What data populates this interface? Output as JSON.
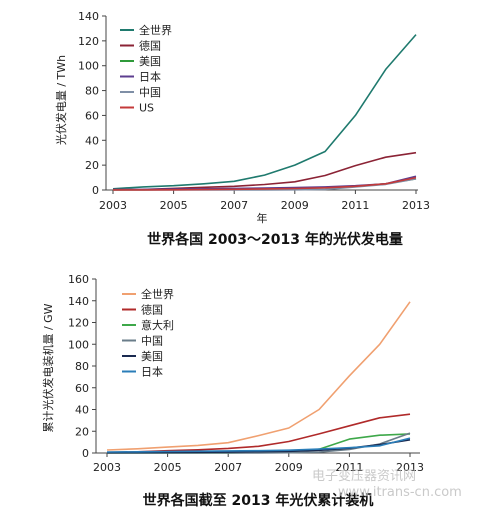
{
  "colors": {
    "world": "#1f7a6e",
    "germany": "#8b2335",
    "usa": "#2f9a3a",
    "japan": "#5c3d8f",
    "china": "#7f8fa6",
    "us": "#c43a3a",
    "world2": "#f0a070",
    "germany2": "#b02a2a",
    "italy": "#3ea84a",
    "china2": "#6a7d8a",
    "usa2": "#1a2a50",
    "japan2": "#2a7db8"
  },
  "chart_data": [
    {
      "type": "line",
      "title": "世界各国 2003～2013 年的光伏发电量",
      "xlabel": "年",
      "ylabel": "光伏发电量 / TWh",
      "xlim": [
        2003,
        2013
      ],
      "ylim": [
        0,
        140
      ],
      "xticks": [
        "2003",
        "2005",
        "2007",
        "2009",
        "2011",
        "2013"
      ],
      "yticks": [
        "0",
        "20",
        "40",
        "60",
        "80",
        "100",
        "120",
        "140"
      ],
      "legend_position": "top-left",
      "x": [
        2003,
        2004,
        2005,
        2006,
        2007,
        2008,
        2009,
        2010,
        2011,
        2012,
        2013
      ],
      "series": [
        {
          "name": "全世界",
          "color_key": "world",
          "values": [
            1,
            2.5,
            3.5,
            5,
            7,
            12,
            20,
            31,
            60,
            97,
            125
          ]
        },
        {
          "name": "德国",
          "color_key": "germany",
          "values": [
            0.3,
            0.5,
            1.3,
            2.2,
            3,
            4.4,
            6.6,
            11.7,
            19.6,
            26.4,
            30
          ]
        },
        {
          "name": "美国",
          "color_key": "usa",
          "values": [
            0.1,
            0.2,
            0.3,
            0.4,
            0.6,
            0.9,
            1.2,
            1.8,
            3,
            5,
            9
          ]
        },
        {
          "name": "日本",
          "color_key": "japan",
          "values": [
            0.3,
            0.5,
            0.8,
            1,
            1.3,
            1.6,
            1.9,
            2.5,
            3.5,
            5,
            11
          ]
        },
        {
          "name": "中国",
          "color_key": "china",
          "values": [
            0,
            0,
            0,
            0.1,
            0.1,
            0.1,
            0.2,
            0.5,
            2.5,
            4.5,
            9
          ]
        },
        {
          "name": "US",
          "color_key": "us",
          "values": [
            0.1,
            0.1,
            0.2,
            0.3,
            0.6,
            0.9,
            1.2,
            1.8,
            3,
            5,
            10
          ]
        }
      ]
    },
    {
      "type": "line",
      "title": "世界各国截至 2013 年光伏累计装机",
      "xlabel": "",
      "ylabel": "累计光伏发电装机量 / GW",
      "xlim": [
        2003,
        2013
      ],
      "ylim": [
        0,
        160
      ],
      "xticks": [
        "2003",
        "2005",
        "2007",
        "2009",
        "2011",
        "2013"
      ],
      "yticks": [
        "0",
        "20",
        "40",
        "60",
        "80",
        "100",
        "120",
        "140",
        "160"
      ],
      "legend_position": "top-left",
      "x": [
        2003,
        2004,
        2005,
        2006,
        2007,
        2008,
        2009,
        2010,
        2011,
        2012,
        2013
      ],
      "series": [
        {
          "name": "全世界",
          "color_key": "world2",
          "values": [
            2.8,
            3.9,
            5.4,
            7,
            9.5,
            16,
            23,
            40,
            71,
            100,
            139
          ]
        },
        {
          "name": "德国",
          "color_key": "germany2",
          "values": [
            0.4,
            1.1,
            2.1,
            2.9,
            4.2,
            6.2,
            10.6,
            17.6,
            25,
            32.4,
            35.7
          ]
        },
        {
          "name": "意大利",
          "color_key": "italy",
          "values": [
            0,
            0,
            0,
            0.1,
            0.1,
            0.5,
            1.2,
            3.5,
            12.8,
            16.4,
            17.6
          ]
        },
        {
          "name": "中国",
          "color_key": "china2",
          "values": [
            0.1,
            0.1,
            0.1,
            0.1,
            0.1,
            0.1,
            0.3,
            0.8,
            3.3,
            8.3,
            18.3
          ]
        },
        {
          "name": "美国",
          "color_key": "usa2",
          "values": [
            0.3,
            0.4,
            0.5,
            0.6,
            0.8,
            1.2,
            1.6,
            2.5,
            4.4,
            7.7,
            12.1
          ]
        },
        {
          "name": "日本",
          "color_key": "japan2",
          "values": [
            0.9,
            1.1,
            1.4,
            1.7,
            1.9,
            2.1,
            2.6,
            3.6,
            4.9,
            6.6,
            13.6
          ]
        }
      ]
    }
  ],
  "watermark": {
    "main": "电子变压器资讯网",
    "url": "www.itrans-cn.com"
  }
}
